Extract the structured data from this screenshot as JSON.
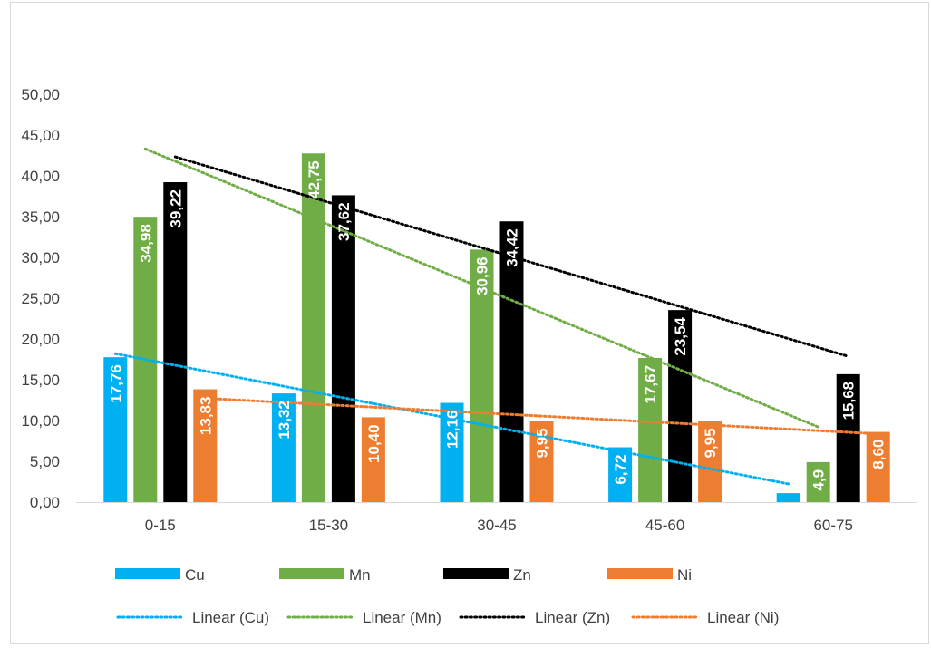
{
  "chart_data": {
    "type": "bar",
    "title": "",
    "xlabel": "",
    "ylabel": "",
    "categories": [
      "0-15",
      "15-30",
      "30-45",
      "45-60",
      "60-75"
    ],
    "ylim": [
      0,
      50
    ],
    "yticks": [
      "0,00",
      "5,00",
      "10,00",
      "15,00",
      "20,00",
      "25,00",
      "30,00",
      "35,00",
      "40,00",
      "45,00",
      "50,00"
    ],
    "grid": false,
    "legend_position": "bottom",
    "series": [
      {
        "name": "Cu",
        "color": "#00b0f0",
        "values": [
          17.76,
          13.32,
          12.16,
          6.72,
          1.1
        ],
        "labels": [
          "17,76",
          "13,32",
          "12,16",
          "6,72",
          ""
        ]
      },
      {
        "name": "Mn",
        "color": "#70ad47",
        "values": [
          34.98,
          42.75,
          30.96,
          17.67,
          4.9
        ],
        "labels": [
          "34,98",
          "42,75",
          "30,96",
          "17,67",
          "4,9"
        ]
      },
      {
        "name": "Zn",
        "color": "#000000",
        "values": [
          39.22,
          37.62,
          34.42,
          23.54,
          15.68
        ],
        "labels": [
          "39,22",
          "37,62",
          "34,42",
          "23,54",
          "15,68"
        ]
      },
      {
        "name": "Ni",
        "color": "#ed7d31",
        "values": [
          13.83,
          10.4,
          9.95,
          9.95,
          8.6
        ],
        "labels": [
          "13,83",
          "10,40",
          "9,95",
          "9,95",
          "8,60"
        ]
      }
    ],
    "trendlines": [
      {
        "name": "Linear (Cu)",
        "color": "#00b0f0",
        "series": "Cu"
      },
      {
        "name": "Linear (Mn)",
        "color": "#70ad47",
        "series": "Mn"
      },
      {
        "name": "Linear (Zn)",
        "color": "#000000",
        "series": "Zn"
      },
      {
        "name": "Linear (Ni)",
        "color": "#ed7d31",
        "series": "Ni"
      }
    ]
  }
}
